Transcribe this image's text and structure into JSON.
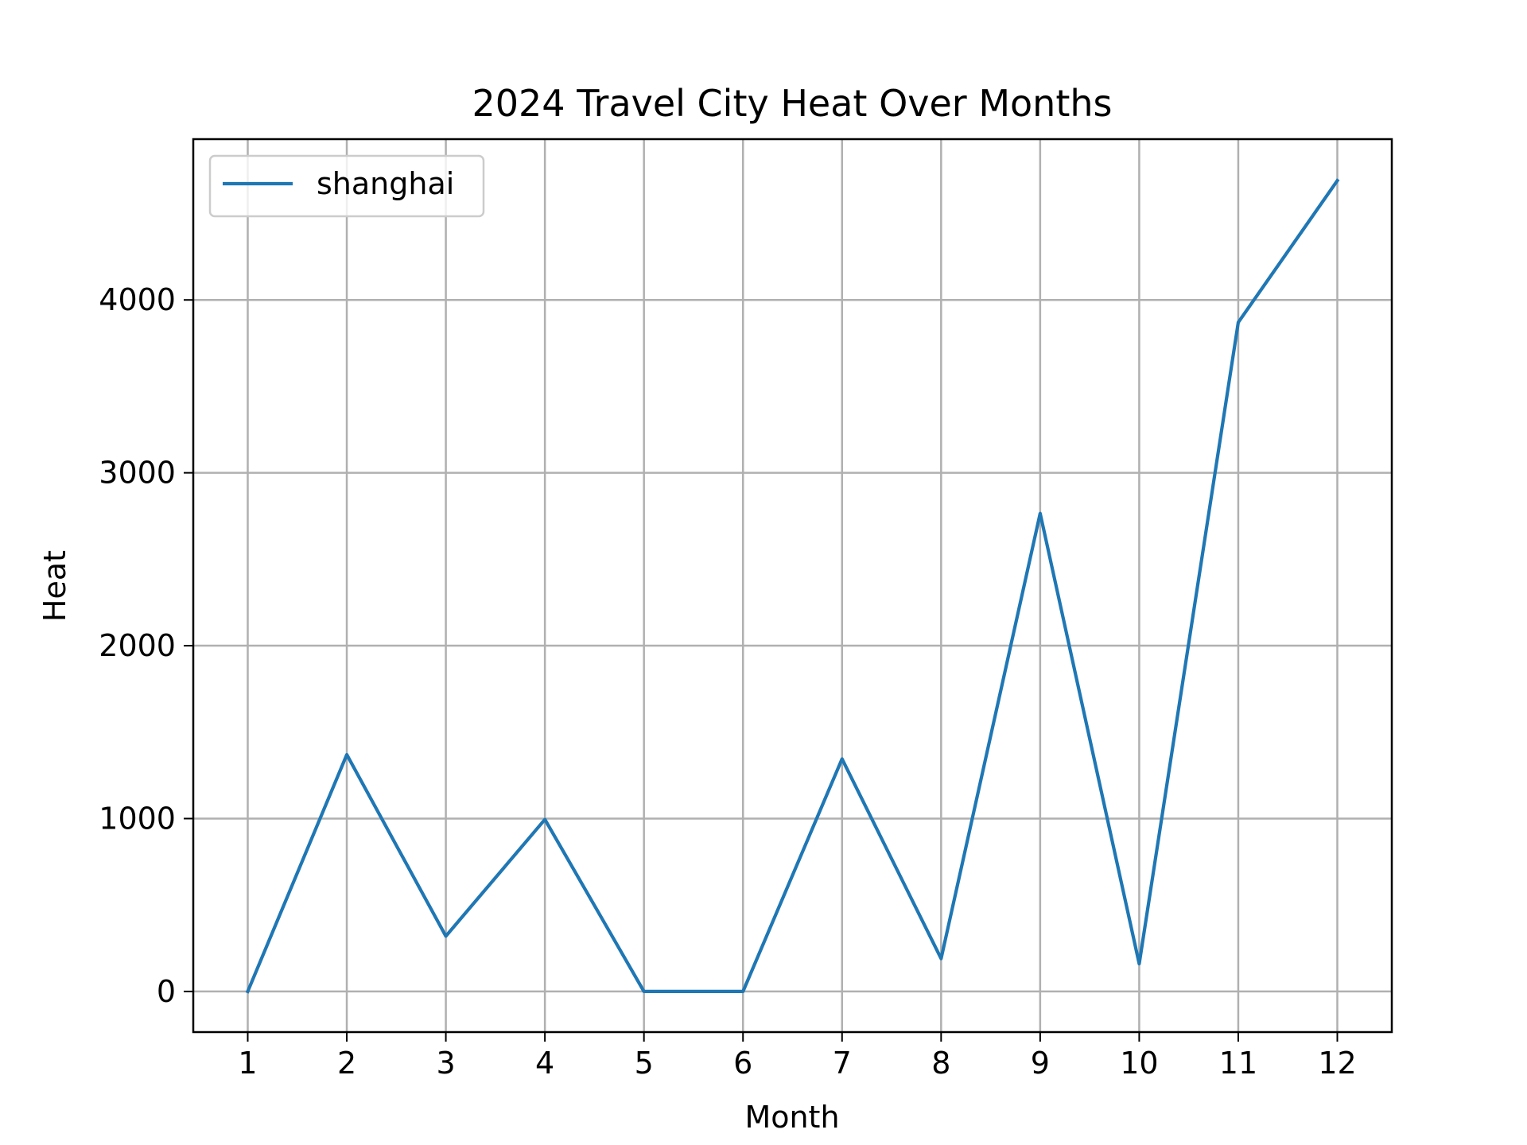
{
  "chart_data": {
    "type": "line",
    "title": "2024 Travel City Heat Over Months",
    "xlabel": "Month",
    "ylabel": "Heat",
    "x": [
      1,
      2,
      3,
      4,
      5,
      6,
      7,
      8,
      9,
      10,
      11,
      12
    ],
    "x_tick_labels": [
      "1",
      "2",
      "3",
      "4",
      "5",
      "6",
      "7",
      "8",
      "9",
      "10",
      "11",
      "12"
    ],
    "y_ticks": [
      0,
      1000,
      2000,
      3000,
      4000
    ],
    "y_tick_labels": [
      "0",
      "1000",
      "2000",
      "3000",
      "4000"
    ],
    "xlim": [
      0.45,
      12.55
    ],
    "ylim": [
      -235,
      4930
    ],
    "grid": true,
    "legend_position": "top-left",
    "series": [
      {
        "name": "shanghai",
        "color": "#1f77b4",
        "values": [
          0,
          1370,
          320,
          995,
          0,
          0,
          1345,
          190,
          2765,
          160,
          3870,
          4690
        ]
      }
    ]
  }
}
